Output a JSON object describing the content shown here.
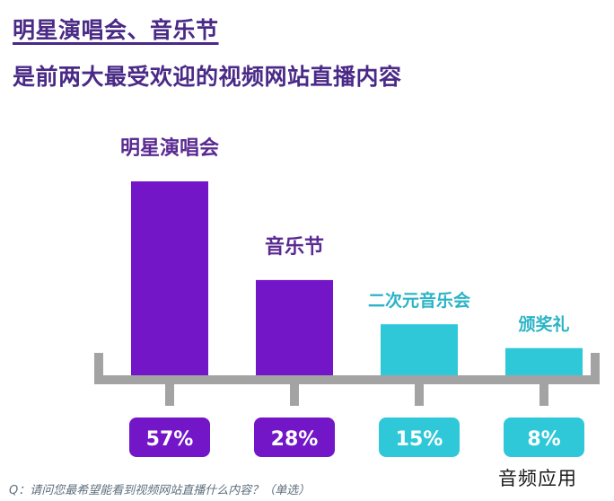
{
  "title": {
    "line1": "明星演唱会、音乐节",
    "line2": "是前两大最受欢迎的视频网站直播内容"
  },
  "chart_data": {
    "type": "bar",
    "categories": [
      "明星演唱会",
      "音乐节",
      "二次元音乐会",
      "颁奖礼"
    ],
    "values": [
      57,
      28,
      15,
      8
    ],
    "value_labels": [
      "57%",
      "28%",
      "15%",
      "8%"
    ],
    "unit": "%",
    "ylim": [
      0,
      57
    ],
    "grid": false,
    "legend": "none",
    "colors": [
      "#7216c8",
      "#7216c8",
      "#2ec8d8",
      "#2ec8d8"
    ],
    "label_colors": [
      "#5a2a92",
      "#5a2a92",
      "#2ab3c6",
      "#2ab3c6"
    ],
    "axis_color": "#a3a3a3"
  },
  "footnote": "Q：请问您最希望能看到视频网站直播什么内容？（单选）",
  "watermark": "音频应用"
}
